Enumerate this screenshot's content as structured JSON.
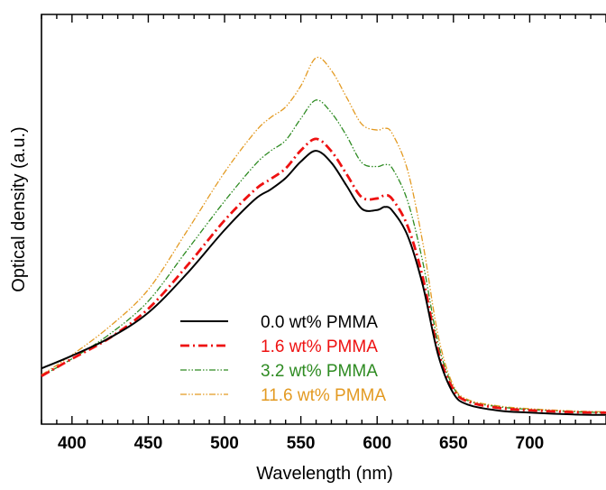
{
  "chart_data": {
    "type": "line",
    "title": "",
    "xlabel": "Wavelength (nm)",
    "ylabel": "Optical density (a.u.)",
    "xlim": [
      380,
      750
    ],
    "ylim": [
      0,
      1.0
    ],
    "x_ticks": [
      400,
      450,
      500,
      550,
      600,
      650,
      700
    ],
    "x_tick_labels": [
      "400",
      "450",
      "500",
      "550",
      "600",
      "650",
      "700"
    ],
    "y_tick_labels_shown": false,
    "grid": false,
    "legend_position": "lower-center",
    "x": [
      380,
      400,
      425,
      450,
      475,
      500,
      520,
      530,
      540,
      550,
      560,
      570,
      580,
      590,
      600,
      605,
      610,
      620,
      630,
      640,
      650,
      660,
      680,
      700,
      730,
      750
    ],
    "series": [
      {
        "name": "0.0 wt% PMMA",
        "color": "#000000",
        "dash": "solid",
        "values": [
          0.145,
          0.178,
          0.225,
          0.29,
          0.39,
          0.505,
          0.585,
          0.61,
          0.64,
          0.683,
          0.711,
          0.68,
          0.62,
          0.56,
          0.557,
          0.565,
          0.555,
          0.49,
          0.36,
          0.18,
          0.08,
          0.05,
          0.035,
          0.03,
          0.025,
          0.024
        ]
      },
      {
        "name": "1.6 wt% PMMA",
        "color": "#ee1111",
        "dash": "dashdot",
        "values": [
          0.125,
          0.17,
          0.225,
          0.3,
          0.41,
          0.53,
          0.61,
          0.637,
          0.665,
          0.712,
          0.742,
          0.71,
          0.65,
          0.59,
          0.587,
          0.595,
          0.585,
          0.515,
          0.38,
          0.19,
          0.09,
          0.058,
          0.042,
          0.036,
          0.031,
          0.03
        ]
      },
      {
        "name": "3.2 wt% PMMA",
        "color": "#2e8b22",
        "dash": "dashdotdot",
        "values": [
          0.125,
          0.17,
          0.235,
          0.32,
          0.45,
          0.58,
          0.675,
          0.71,
          0.738,
          0.795,
          0.843,
          0.81,
          0.75,
          0.68,
          0.67,
          0.675,
          0.665,
          0.58,
          0.42,
          0.21,
          0.095,
          0.06,
          0.045,
          0.038,
          0.032,
          0.03
        ]
      },
      {
        "name": "11.6 wt% PMMA",
        "color": "#e39a22",
        "dash": "dashdotdot",
        "values": [
          0.128,
          0.18,
          0.255,
          0.35,
          0.5,
          0.655,
          0.76,
          0.797,
          0.825,
          0.88,
          0.953,
          0.92,
          0.85,
          0.78,
          0.765,
          0.77,
          0.755,
          0.66,
          0.47,
          0.23,
          0.1,
          0.063,
          0.047,
          0.04,
          0.034,
          0.032
        ]
      }
    ]
  }
}
